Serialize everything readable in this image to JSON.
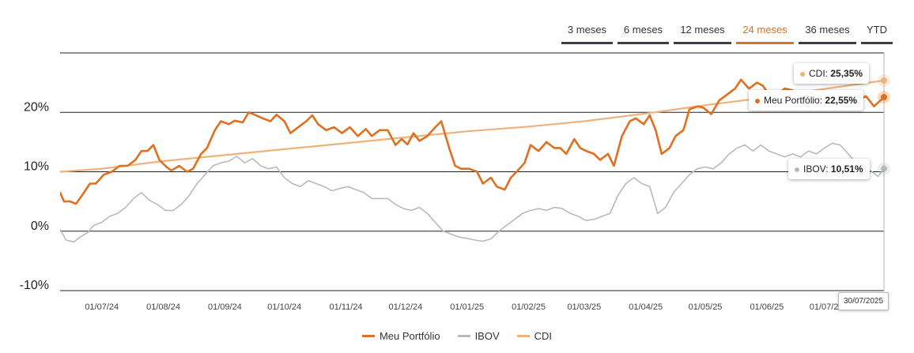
{
  "tabs": [
    {
      "label": "3 meses",
      "active": false
    },
    {
      "label": "6 meses",
      "active": false
    },
    {
      "label": "12 meses",
      "active": false
    },
    {
      "label": "24 meses",
      "active": true
    },
    {
      "label": "36 meses",
      "active": false
    },
    {
      "label": "YTD",
      "active": false
    }
  ],
  "colors": {
    "portfolio": "#e06f1f",
    "ibov": "#b7babd",
    "cdi": "#efb27b",
    "accent": "#e06f1f"
  },
  "tooltips": {
    "cdi": {
      "label": "CDI:",
      "value": "25,35%"
    },
    "portfolio": {
      "label": "Meu Portfólio:",
      "value": "22,55%"
    },
    "ibov": {
      "label": "IBOV:",
      "value": "10,51%"
    },
    "date": "30/07/2025"
  },
  "chart_data": {
    "type": "line",
    "title": "",
    "xlabel": "",
    "ylabel": "",
    "ylim": [
      -10,
      30
    ],
    "xlim": [
      "2024-06-10",
      "2025-07-30"
    ],
    "yticks": [
      {
        "value": 20,
        "label": "20%"
      },
      {
        "value": 10,
        "label": "10%"
      },
      {
        "value": 0,
        "label": "0%"
      },
      {
        "value": -10,
        "label": "-10%"
      }
    ],
    "xticks": [
      {
        "t": "2024-07-01",
        "label": "01/07/24"
      },
      {
        "t": "2024-08-01",
        "label": "01/08/24"
      },
      {
        "t": "2024-09-01",
        "label": "01/09/24"
      },
      {
        "t": "2024-10-01",
        "label": "01/10/24"
      },
      {
        "t": "2024-11-01",
        "label": "01/11/24"
      },
      {
        "t": "2024-12-01",
        "label": "01/12/24"
      },
      {
        "t": "2025-01-01",
        "label": "01/01/25"
      },
      {
        "t": "2025-02-01",
        "label": "01/02/25"
      },
      {
        "t": "2025-03-01",
        "label": "01/03/25"
      },
      {
        "t": "2025-04-01",
        "label": "01/04/25"
      },
      {
        "t": "2025-05-01",
        "label": "01/05/25"
      },
      {
        "t": "2025-06-01",
        "label": "01/06/25"
      },
      {
        "t": "2025-07-01",
        "label": "01/07/25"
      }
    ],
    "series": [
      {
        "name": "Meu Portfólio",
        "key": "portfolio",
        "width": 2.6,
        "points": [
          [
            "2024-06-10",
            6.5
          ],
          [
            "2024-06-12",
            5
          ],
          [
            "2024-06-15",
            5
          ],
          [
            "2024-06-18",
            4.6
          ],
          [
            "2024-06-21",
            6
          ],
          [
            "2024-06-25",
            8
          ],
          [
            "2024-06-28",
            8
          ],
          [
            "2024-07-02",
            9.5
          ],
          [
            "2024-07-06",
            10
          ],
          [
            "2024-07-10",
            11
          ],
          [
            "2024-07-14",
            11
          ],
          [
            "2024-07-18",
            12
          ],
          [
            "2024-07-21",
            13.5
          ],
          [
            "2024-07-24",
            13.5
          ],
          [
            "2024-07-27",
            14.5
          ],
          [
            "2024-07-30",
            12
          ],
          [
            "2024-08-02",
            11
          ],
          [
            "2024-08-05",
            10.2
          ],
          [
            "2024-08-09",
            11
          ],
          [
            "2024-08-13",
            10
          ],
          [
            "2024-08-16",
            10.5
          ],
          [
            "2024-08-20",
            13
          ],
          [
            "2024-08-23",
            14
          ],
          [
            "2024-08-27",
            17
          ],
          [
            "2024-08-30",
            18.5
          ],
          [
            "2024-09-03",
            18
          ],
          [
            "2024-09-06",
            18.6
          ],
          [
            "2024-09-10",
            18.3
          ],
          [
            "2024-09-13",
            20
          ],
          [
            "2024-09-16",
            19.6
          ],
          [
            "2024-09-20",
            19
          ],
          [
            "2024-09-24",
            18.5
          ],
          [
            "2024-09-27",
            19.6
          ],
          [
            "2024-10-01",
            18.5
          ],
          [
            "2024-10-04",
            16.5
          ],
          [
            "2024-10-08",
            17.5
          ],
          [
            "2024-10-12",
            18.5
          ],
          [
            "2024-10-15",
            19.5
          ],
          [
            "2024-10-18",
            18
          ],
          [
            "2024-10-22",
            17
          ],
          [
            "2024-10-26",
            17.5
          ],
          [
            "2024-10-30",
            16.5
          ],
          [
            "2024-11-03",
            17.5
          ],
          [
            "2024-11-07",
            16
          ],
          [
            "2024-11-11",
            17.2
          ],
          [
            "2024-11-14",
            16
          ],
          [
            "2024-11-18",
            17
          ],
          [
            "2024-11-22",
            17
          ],
          [
            "2024-11-26",
            14.5
          ],
          [
            "2024-11-29",
            15.5
          ],
          [
            "2024-12-02",
            14.6
          ],
          [
            "2024-12-05",
            16.5
          ],
          [
            "2024-12-08",
            15.2
          ],
          [
            "2024-12-12",
            16
          ],
          [
            "2024-12-16",
            17.5
          ],
          [
            "2024-12-19",
            18.5
          ],
          [
            "2024-12-23",
            14
          ],
          [
            "2024-12-26",
            11
          ],
          [
            "2024-12-29",
            10.5
          ],
          [
            "2025-01-02",
            10.5
          ],
          [
            "2025-01-06",
            10
          ],
          [
            "2025-01-09",
            8
          ],
          [
            "2025-01-13",
            9
          ],
          [
            "2025-01-16",
            7.5
          ],
          [
            "2025-01-20",
            7
          ],
          [
            "2025-01-23",
            9
          ],
          [
            "2025-01-26",
            10
          ],
          [
            "2025-01-30",
            11.5
          ],
          [
            "2025-02-02",
            14.5
          ],
          [
            "2025-02-06",
            13.5
          ],
          [
            "2025-02-10",
            15
          ],
          [
            "2025-02-14",
            14
          ],
          [
            "2025-02-17",
            14
          ],
          [
            "2025-02-20",
            13
          ],
          [
            "2025-02-24",
            15.5
          ],
          [
            "2025-02-27",
            14
          ],
          [
            "2025-03-02",
            13.5
          ],
          [
            "2025-03-06",
            13
          ],
          [
            "2025-03-09",
            12
          ],
          [
            "2025-03-13",
            13
          ],
          [
            "2025-03-16",
            11
          ],
          [
            "2025-03-20",
            16
          ],
          [
            "2025-03-24",
            18.5
          ],
          [
            "2025-03-27",
            19
          ],
          [
            "2025-03-31",
            18
          ],
          [
            "2025-04-03",
            19.5
          ],
          [
            "2025-04-06",
            17
          ],
          [
            "2025-04-09",
            13
          ],
          [
            "2025-04-13",
            14
          ],
          [
            "2025-04-16",
            16
          ],
          [
            "2025-04-20",
            17
          ],
          [
            "2025-04-23",
            20.5
          ],
          [
            "2025-04-27",
            21
          ],
          [
            "2025-04-30",
            20.8
          ],
          [
            "2025-05-04",
            19.7
          ],
          [
            "2025-05-08",
            22
          ],
          [
            "2025-05-12",
            23
          ],
          [
            "2025-05-16",
            24
          ],
          [
            "2025-05-19",
            25.5
          ],
          [
            "2025-05-23",
            24
          ],
          [
            "2025-05-27",
            25
          ],
          [
            "2025-05-30",
            24.5
          ],
          [
            "2025-06-02",
            23
          ],
          [
            "2025-06-06",
            23
          ],
          [
            "2025-06-10",
            24
          ],
          [
            "2025-06-14",
            23.7
          ],
          [
            "2025-06-18",
            22.5
          ],
          [
            "2025-06-22",
            23.5
          ],
          [
            "2025-06-26",
            22.3
          ],
          [
            "2025-06-30",
            23.5
          ],
          [
            "2025-07-04",
            23.3
          ],
          [
            "2025-07-08",
            21.7
          ],
          [
            "2025-07-13",
            23
          ],
          [
            "2025-07-17",
            22.2
          ],
          [
            "2025-07-21",
            22.7
          ],
          [
            "2025-07-25",
            21
          ],
          [
            "2025-07-30",
            22.55
          ]
        ]
      },
      {
        "name": "IBOV",
        "key": "ibov",
        "width": 1.6,
        "points": [
          [
            "2024-06-10",
            0.3
          ],
          [
            "2024-06-13",
            -1.5
          ],
          [
            "2024-06-17",
            -1.8
          ],
          [
            "2024-06-20",
            -1
          ],
          [
            "2024-06-24",
            -0.2
          ],
          [
            "2024-06-27",
            1
          ],
          [
            "2024-07-01",
            1.5
          ],
          [
            "2024-07-05",
            2.5
          ],
          [
            "2024-07-09",
            3
          ],
          [
            "2024-07-13",
            4
          ],
          [
            "2024-07-17",
            5.5
          ],
          [
            "2024-07-21",
            6.5
          ],
          [
            "2024-07-25",
            5.2
          ],
          [
            "2024-07-29",
            4.5
          ],
          [
            "2024-08-02",
            3.5
          ],
          [
            "2024-08-06",
            3.5
          ],
          [
            "2024-08-10",
            4.5
          ],
          [
            "2024-08-14",
            6
          ],
          [
            "2024-08-18",
            8
          ],
          [
            "2024-08-22",
            9.5
          ],
          [
            "2024-08-26",
            11
          ],
          [
            "2024-08-30",
            11.5
          ],
          [
            "2024-09-03",
            11.8
          ],
          [
            "2024-09-07",
            12.6
          ],
          [
            "2024-09-11",
            11.5
          ],
          [
            "2024-09-15",
            12.2
          ],
          [
            "2024-09-19",
            11
          ],
          [
            "2024-09-23",
            10.5
          ],
          [
            "2024-09-27",
            10.8
          ],
          [
            "2024-10-01",
            9
          ],
          [
            "2024-10-05",
            8
          ],
          [
            "2024-10-09",
            7.5
          ],
          [
            "2024-10-13",
            8.5
          ],
          [
            "2024-10-17",
            8
          ],
          [
            "2024-10-21",
            7.5
          ],
          [
            "2024-10-25",
            6.8
          ],
          [
            "2024-10-29",
            7.2
          ],
          [
            "2024-11-02",
            7.5
          ],
          [
            "2024-11-06",
            7
          ],
          [
            "2024-11-10",
            6.5
          ],
          [
            "2024-11-14",
            5.5
          ],
          [
            "2024-11-18",
            5.5
          ],
          [
            "2024-11-22",
            5.5
          ],
          [
            "2024-11-26",
            4.5
          ],
          [
            "2024-11-30",
            3.8
          ],
          [
            "2024-12-04",
            3.5
          ],
          [
            "2024-12-08",
            4
          ],
          [
            "2024-12-12",
            3
          ],
          [
            "2024-12-16",
            1.5
          ],
          [
            "2024-12-20",
            0
          ],
          [
            "2024-12-24",
            -0.5
          ],
          [
            "2024-12-28",
            -1
          ],
          [
            "2025-01-01",
            -1.2
          ],
          [
            "2025-01-05",
            -1.5
          ],
          [
            "2025-01-09",
            -1.7
          ],
          [
            "2025-01-13",
            -1.3
          ],
          [
            "2025-01-17",
            0
          ],
          [
            "2025-01-21",
            1
          ],
          [
            "2025-01-25",
            2
          ],
          [
            "2025-01-29",
            3
          ],
          [
            "2025-02-02",
            3.5
          ],
          [
            "2025-02-06",
            3.8
          ],
          [
            "2025-02-10",
            3.5
          ],
          [
            "2025-02-14",
            4
          ],
          [
            "2025-02-18",
            3.8
          ],
          [
            "2025-02-22",
            3
          ],
          [
            "2025-02-26",
            2.5
          ],
          [
            "2025-03-02",
            1.8
          ],
          [
            "2025-03-06",
            2
          ],
          [
            "2025-03-10",
            2.5
          ],
          [
            "2025-03-14",
            3
          ],
          [
            "2025-03-18",
            6
          ],
          [
            "2025-03-22",
            8
          ],
          [
            "2025-03-26",
            9
          ],
          [
            "2025-03-30",
            8
          ],
          [
            "2025-04-03",
            7.5
          ],
          [
            "2025-04-07",
            3
          ],
          [
            "2025-04-11",
            4
          ],
          [
            "2025-04-15",
            6.5
          ],
          [
            "2025-04-19",
            8
          ],
          [
            "2025-04-23",
            9.5
          ],
          [
            "2025-04-27",
            10.5
          ],
          [
            "2025-05-01",
            10.8
          ],
          [
            "2025-05-05",
            10.5
          ],
          [
            "2025-05-09",
            11.5
          ],
          [
            "2025-05-13",
            13
          ],
          [
            "2025-05-17",
            14
          ],
          [
            "2025-05-21",
            14.5
          ],
          [
            "2025-05-25",
            13.5
          ],
          [
            "2025-05-29",
            14.5
          ],
          [
            "2025-06-02",
            13.5
          ],
          [
            "2025-06-06",
            13
          ],
          [
            "2025-06-10",
            12.5
          ],
          [
            "2025-06-14",
            13
          ],
          [
            "2025-06-18",
            12.5
          ],
          [
            "2025-06-22",
            13.5
          ],
          [
            "2025-06-26",
            13
          ],
          [
            "2025-06-30",
            14
          ],
          [
            "2025-07-04",
            14.8
          ],
          [
            "2025-07-08",
            14.5
          ],
          [
            "2025-07-12",
            13
          ],
          [
            "2025-07-16",
            11.5
          ],
          [
            "2025-07-20",
            11
          ],
          [
            "2025-07-24",
            10
          ],
          [
            "2025-07-27",
            9.2
          ],
          [
            "2025-07-30",
            10.51
          ]
        ]
      },
      {
        "name": "CDI",
        "key": "cdi",
        "width": 2.2,
        "points": [
          [
            "2024-06-10",
            10
          ],
          [
            "2024-07-01",
            10.5
          ],
          [
            "2024-08-01",
            11.8
          ],
          [
            "2024-09-01",
            12.8
          ],
          [
            "2024-10-01",
            13.8
          ],
          [
            "2024-11-01",
            14.8
          ],
          [
            "2024-12-01",
            15.8
          ],
          [
            "2025-01-01",
            16.8
          ],
          [
            "2025-02-01",
            17.6
          ],
          [
            "2025-03-01",
            18.5
          ],
          [
            "2025-04-01",
            19.8
          ],
          [
            "2025-05-01",
            21.2
          ],
          [
            "2025-06-01",
            22.5
          ],
          [
            "2025-07-01",
            24
          ],
          [
            "2025-07-30",
            25.35
          ]
        ]
      }
    ]
  }
}
